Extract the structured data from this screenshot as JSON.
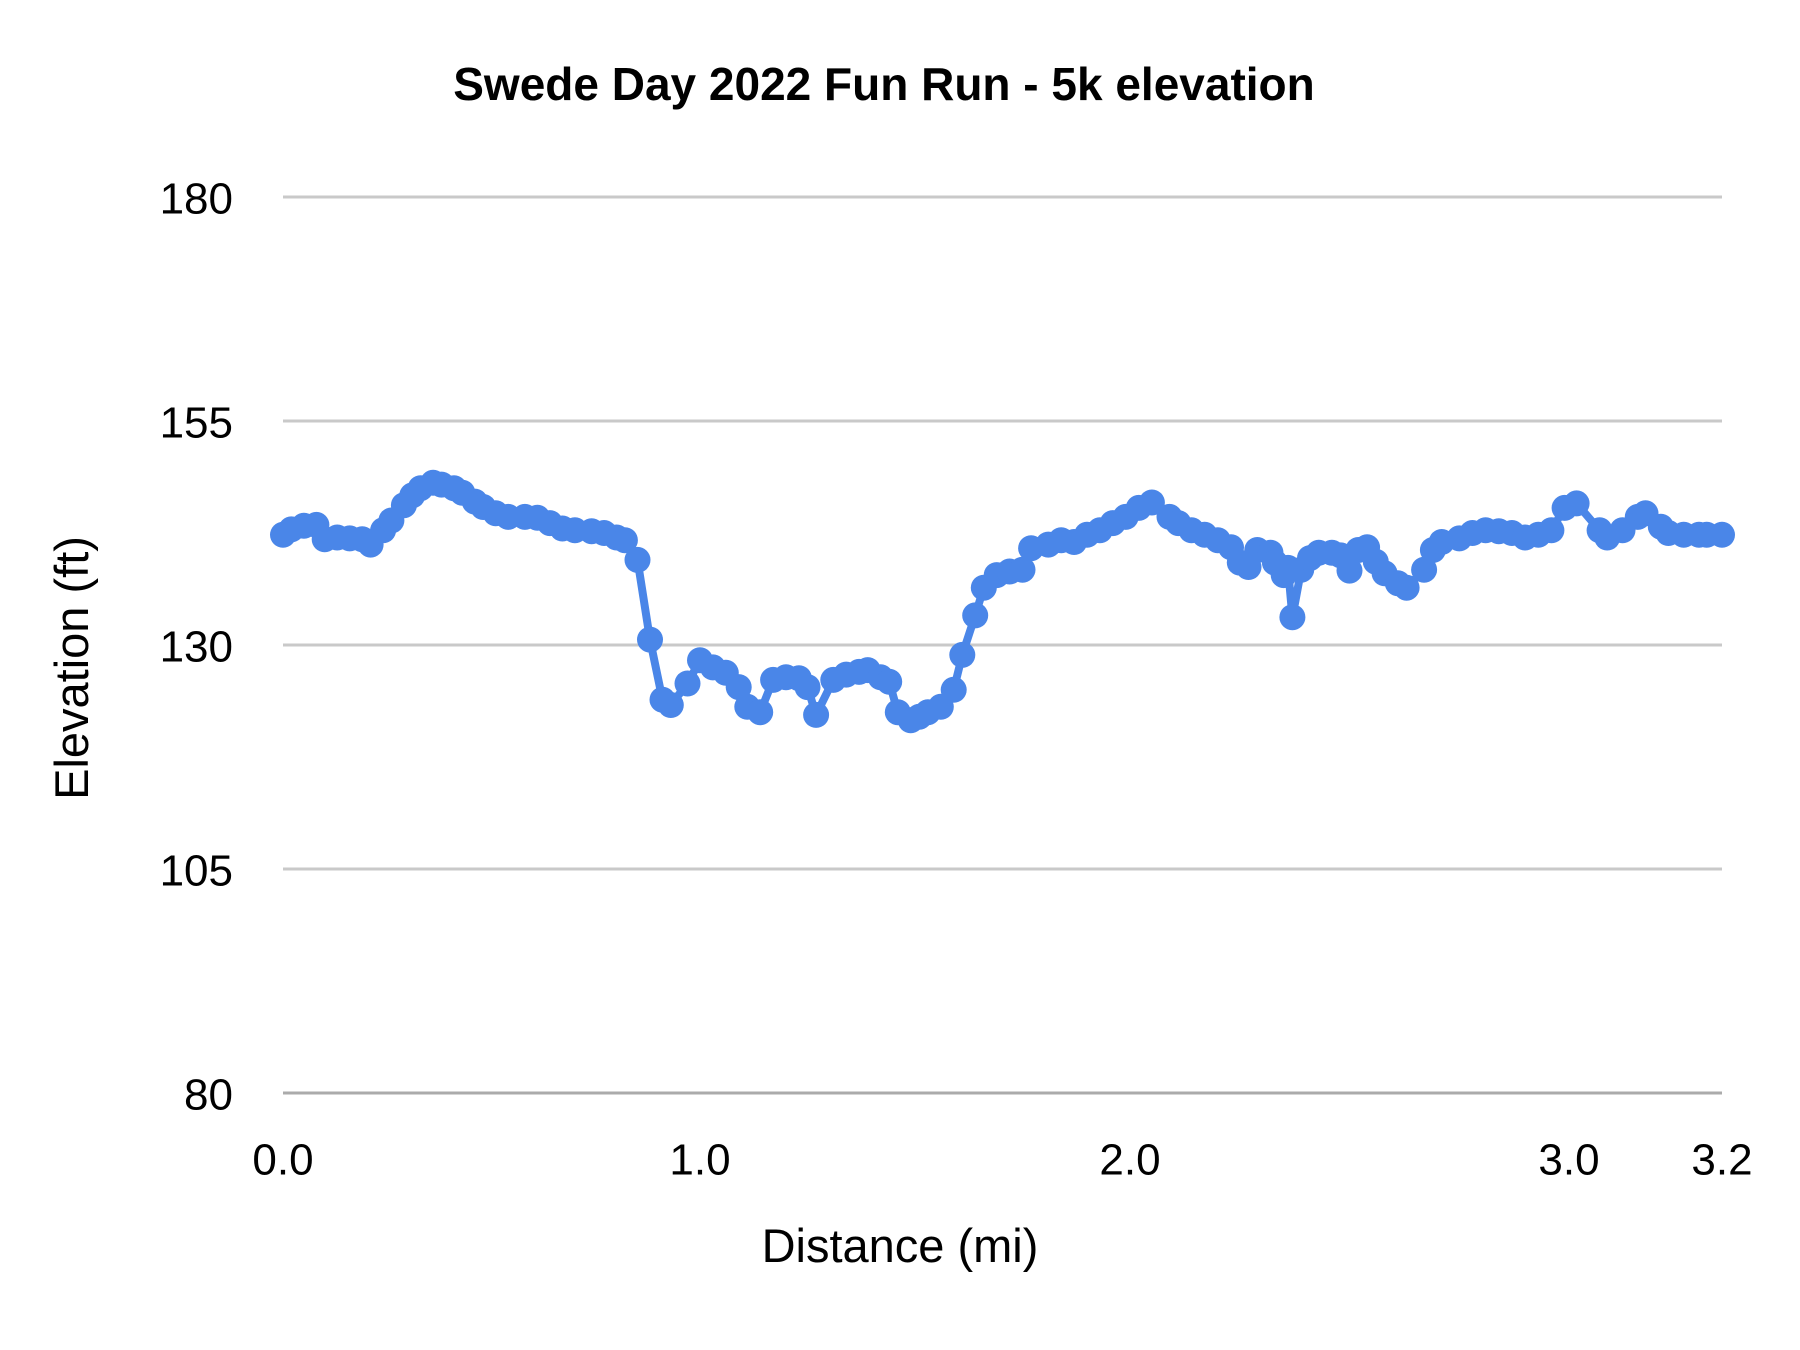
{
  "chart_data": {
    "type": "line",
    "title": "Swede Day 2022 Fun Run - 5k elevation",
    "xlabel": "Distance (mi)",
    "ylabel": "Elevation (ft)",
    "legend": "none",
    "grid": "horizontal-only",
    "ylim": [
      80,
      180
    ],
    "xlim": [
      0,
      3.2
    ],
    "y_ticks": [
      180,
      155,
      130,
      105,
      80
    ],
    "x_ticks": [
      {
        "label": "0.0",
        "value": 0.0
      },
      {
        "label": "1.0",
        "value": 1.0
      },
      {
        "label": "2.0",
        "value": 2.0
      },
      {
        "label": "3.0",
        "value": 3.0
      },
      {
        "label": "3.2",
        "value": 3.2
      }
    ],
    "series": [
      {
        "name": "5k elevation",
        "color": "#4a86e8",
        "marker": "circle",
        "points": [
          [
            0.0,
            142.3
          ],
          [
            0.02,
            142.9
          ],
          [
            0.05,
            143.3
          ],
          [
            0.08,
            143.4
          ],
          [
            0.1,
            141.8
          ],
          [
            0.13,
            142.0
          ],
          [
            0.16,
            141.9
          ],
          [
            0.19,
            141.8
          ],
          [
            0.21,
            141.2
          ],
          [
            0.24,
            142.8
          ],
          [
            0.26,
            143.9
          ],
          [
            0.29,
            145.6
          ],
          [
            0.31,
            146.7
          ],
          [
            0.33,
            147.5
          ],
          [
            0.36,
            148.1
          ],
          [
            0.38,
            147.9
          ],
          [
            0.41,
            147.5
          ],
          [
            0.43,
            147.0
          ],
          [
            0.46,
            146.0
          ],
          [
            0.48,
            145.4
          ],
          [
            0.51,
            144.7
          ],
          [
            0.54,
            144.3
          ],
          [
            0.58,
            144.3
          ],
          [
            0.61,
            144.2
          ],
          [
            0.64,
            143.6
          ],
          [
            0.67,
            143.0
          ],
          [
            0.7,
            142.8
          ],
          [
            0.74,
            142.7
          ],
          [
            0.77,
            142.5
          ],
          [
            0.8,
            142.0
          ],
          [
            0.82,
            141.7
          ],
          [
            0.85,
            139.5
          ],
          [
            0.88,
            130.6
          ],
          [
            0.91,
            123.9
          ],
          [
            0.93,
            123.3
          ],
          [
            0.97,
            125.7
          ],
          [
            1.0,
            128.3
          ],
          [
            1.03,
            127.5
          ],
          [
            1.06,
            126.9
          ],
          [
            1.09,
            125.3
          ],
          [
            1.11,
            123.1
          ],
          [
            1.14,
            122.5
          ],
          [
            1.17,
            126.1
          ],
          [
            1.2,
            126.4
          ],
          [
            1.23,
            126.3
          ],
          [
            1.25,
            125.3
          ],
          [
            1.27,
            122.2
          ],
          [
            1.31,
            126.1
          ],
          [
            1.34,
            126.7
          ],
          [
            1.37,
            127.0
          ],
          [
            1.39,
            127.2
          ],
          [
            1.42,
            126.4
          ],
          [
            1.44,
            125.9
          ],
          [
            1.46,
            122.5
          ],
          [
            1.49,
            121.6
          ],
          [
            1.51,
            122.0
          ],
          [
            1.53,
            122.5
          ],
          [
            1.56,
            123.1
          ],
          [
            1.59,
            125.0
          ],
          [
            1.61,
            128.9
          ],
          [
            1.64,
            133.3
          ],
          [
            1.66,
            136.4
          ],
          [
            1.69,
            137.8
          ],
          [
            1.72,
            138.2
          ],
          [
            1.75,
            138.4
          ],
          [
            1.77,
            140.8
          ],
          [
            1.81,
            141.2
          ],
          [
            1.84,
            141.7
          ],
          [
            1.87,
            141.5
          ],
          [
            1.9,
            142.3
          ],
          [
            1.93,
            142.8
          ],
          [
            1.96,
            143.6
          ],
          [
            1.99,
            144.3
          ],
          [
            2.02,
            145.3
          ],
          [
            2.05,
            145.9
          ],
          [
            2.09,
            144.3
          ],
          [
            2.11,
            143.6
          ],
          [
            2.14,
            142.8
          ],
          [
            2.17,
            142.3
          ],
          [
            2.2,
            141.7
          ],
          [
            2.23,
            140.9
          ],
          [
            2.25,
            139.2
          ],
          [
            2.27,
            138.7
          ],
          [
            2.29,
            140.6
          ],
          [
            2.32,
            140.3
          ],
          [
            2.33,
            139.2
          ],
          [
            2.35,
            137.8
          ],
          [
            2.36,
            138.6
          ],
          [
            2.37,
            133.1
          ],
          [
            2.39,
            138.4
          ],
          [
            2.41,
            139.7
          ],
          [
            2.43,
            140.3
          ],
          [
            2.46,
            140.3
          ],
          [
            2.48,
            140.0
          ],
          [
            2.5,
            138.3
          ],
          [
            2.52,
            140.6
          ],
          [
            2.54,
            140.9
          ],
          [
            2.56,
            139.3
          ],
          [
            2.58,
            138.0
          ],
          [
            2.61,
            136.9
          ],
          [
            2.63,
            136.4
          ],
          [
            2.67,
            138.4
          ],
          [
            2.69,
            140.6
          ],
          [
            2.71,
            141.5
          ],
          [
            2.75,
            141.9
          ],
          [
            2.78,
            142.5
          ],
          [
            2.81,
            142.8
          ],
          [
            2.84,
            142.7
          ],
          [
            2.87,
            142.5
          ],
          [
            2.9,
            142.0
          ],
          [
            2.93,
            142.3
          ],
          [
            2.96,
            142.8
          ],
          [
            2.99,
            145.3
          ],
          [
            3.01,
            145.8
          ],
          [
            3.04,
            142.8
          ],
          [
            3.05,
            142.0
          ],
          [
            3.07,
            142.8
          ],
          [
            3.09,
            144.3
          ],
          [
            3.1,
            144.7
          ],
          [
            3.12,
            143.2
          ],
          [
            3.13,
            142.5
          ],
          [
            3.15,
            142.3
          ],
          [
            3.17,
            142.3
          ],
          [
            3.18,
            142.3
          ],
          [
            3.2,
            142.3
          ]
        ]
      }
    ],
    "colors": {
      "line": "#4a86e8",
      "gridline": "#c9c9c9",
      "baseline": "#ababab",
      "text": "#000000",
      "background": "#ffffff"
    }
  }
}
